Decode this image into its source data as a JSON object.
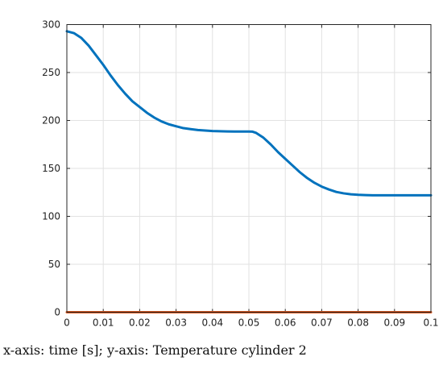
{
  "caption": "x-axis: time [s]; y-axis: Temperature cylinder 2",
  "chart_data": {
    "type": "line",
    "title": "",
    "xlabel": "",
    "ylabel": "",
    "xlim": [
      0,
      0.1
    ],
    "ylim": [
      0,
      300
    ],
    "xticks": [
      0,
      0.01,
      0.02,
      0.03,
      0.04,
      0.05,
      0.06,
      0.07,
      0.08,
      0.09,
      0.1
    ],
    "xtick_labels": [
      "0",
      "0.01",
      "0.02",
      "0.03",
      "0.04",
      "0.05",
      "0.06",
      "0.07",
      "0.08",
      "0.09",
      "0.1"
    ],
    "yticks": [
      0,
      50,
      100,
      150,
      200,
      250,
      300
    ],
    "ytick_labels": [
      "0",
      "50",
      "100",
      "150",
      "200",
      "250",
      "300"
    ],
    "grid": true,
    "series": [
      {
        "color": "#0072BD",
        "x": [
          0,
          0.002,
          0.004,
          0.006,
          0.008,
          0.01,
          0.012,
          0.014,
          0.016,
          0.018,
          0.02,
          0.022,
          0.024,
          0.026,
          0.028,
          0.03,
          0.032,
          0.034,
          0.036,
          0.038,
          0.04,
          0.042,
          0.044,
          0.046,
          0.048,
          0.05,
          0.051,
          0.052,
          0.054,
          0.056,
          0.058,
          0.06,
          0.062,
          0.064,
          0.066,
          0.068,
          0.07,
          0.072,
          0.074,
          0.076,
          0.078,
          0.08,
          0.082,
          0.084,
          0.086,
          0.088,
          0.09,
          0.092,
          0.094,
          0.096,
          0.098,
          0.1
        ],
        "y": [
          293,
          291,
          286,
          278,
          268,
          258,
          247,
          237,
          228,
          220,
          214,
          208,
          203,
          199,
          196,
          194,
          192,
          191,
          190,
          189.5,
          189,
          188.8,
          188.6,
          188.5,
          188.5,
          188.4,
          188.3,
          187,
          182,
          175,
          167,
          160,
          153,
          146,
          140,
          135,
          131,
          128,
          125.5,
          124,
          123,
          122.5,
          122.2,
          122,
          122,
          122,
          122,
          122,
          122,
          122,
          122,
          122
        ]
      },
      {
        "color": "#D95319",
        "x": [
          0,
          0.1
        ],
        "y": [
          0,
          0
        ]
      }
    ]
  }
}
